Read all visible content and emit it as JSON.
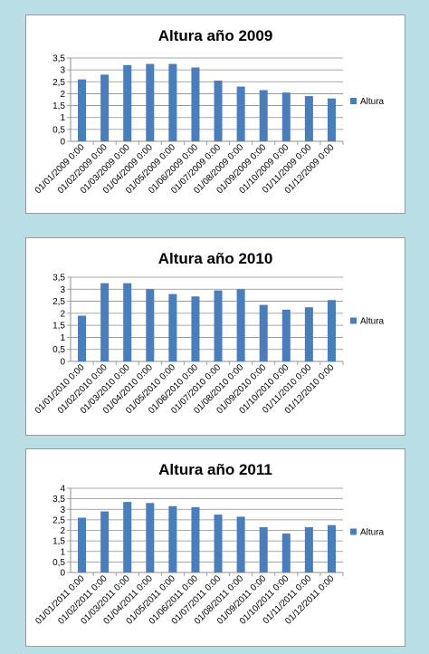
{
  "colors": {
    "bar": "#4a7ebb",
    "background": "#b9dfe4",
    "grid": "#8c8c8c"
  },
  "chart_data": [
    {
      "type": "bar",
      "title": "Altura año 2009",
      "categories": [
        "01/01/2009 0:00",
        "01/02/2009 0:00",
        "01/03/2009 0:00",
        "01/04/2009 0:00",
        "01/05/2009 0:00",
        "01/06/2009 0:00",
        "01/07/2009 0:00",
        "01/08/2009 0:00",
        "01/09/2009 0:00",
        "01/10/2009 0:00",
        "01/11/2009 0:00",
        "01/12/2009 0:00"
      ],
      "series": [
        {
          "name": "Altura",
          "values": [
            2.6,
            2.8,
            3.2,
            3.25,
            3.25,
            3.1,
            2.55,
            2.3,
            2.15,
            2.05,
            1.9,
            1.8
          ]
        }
      ],
      "ylim": [
        0,
        3.5
      ],
      "yticks": [
        "0",
        "0,5",
        "1",
        "1,5",
        "2",
        "2,5",
        "3",
        "3,5"
      ],
      "grid": true,
      "legend_position": "right"
    },
    {
      "type": "bar",
      "title": "Altura año 2010",
      "categories": [
        "01/01/2010 0:00",
        "01/02/2010 0:00",
        "01/03/2010 0:00",
        "01/04/2010 0:00",
        "01/05/2010 0:00",
        "01/06/2010 0:00",
        "01/07/2010 0:00",
        "01/08/2010 0:00",
        "01/09/2010 0:00",
        "01/10/2010 0:00",
        "01/11/2010 0:00",
        "01/12/2010 0:00"
      ],
      "series": [
        {
          "name": "Altura",
          "values": [
            1.9,
            3.25,
            3.25,
            3.0,
            2.8,
            2.7,
            2.95,
            3.0,
            2.35,
            2.15,
            2.25,
            2.55
          ]
        }
      ],
      "ylim": [
        0,
        3.5
      ],
      "yticks": [
        "0",
        "0,5",
        "1",
        "1,5",
        "2",
        "2,5",
        "3",
        "3,5"
      ],
      "grid": true,
      "legend_position": "right"
    },
    {
      "type": "bar",
      "title": "Altura año 2011",
      "categories": [
        "01/01/2011 0:00",
        "01/02/2011 0:00",
        "01/03/2011 0:00",
        "01/04/2011 0:00",
        "01/05/2011 0:00",
        "01/06/2011 0:00",
        "01/07/2011 0:00",
        "01/08/2011 0:00",
        "01/09/2011 0:00",
        "01/10/2011 0:00",
        "01/11/2011 0:00",
        "01/12/2011 0:00"
      ],
      "series": [
        {
          "name": "Altura",
          "values": [
            2.6,
            2.9,
            3.35,
            3.3,
            3.15,
            3.1,
            2.75,
            2.65,
            2.15,
            1.85,
            2.15,
            2.25
          ]
        }
      ],
      "ylim": [
        0,
        4
      ],
      "yticks": [
        "0",
        "0,5",
        "1",
        "1,5",
        "2",
        "2,5",
        "3",
        "3,5",
        "4"
      ],
      "grid": true,
      "legend_position": "right"
    }
  ]
}
